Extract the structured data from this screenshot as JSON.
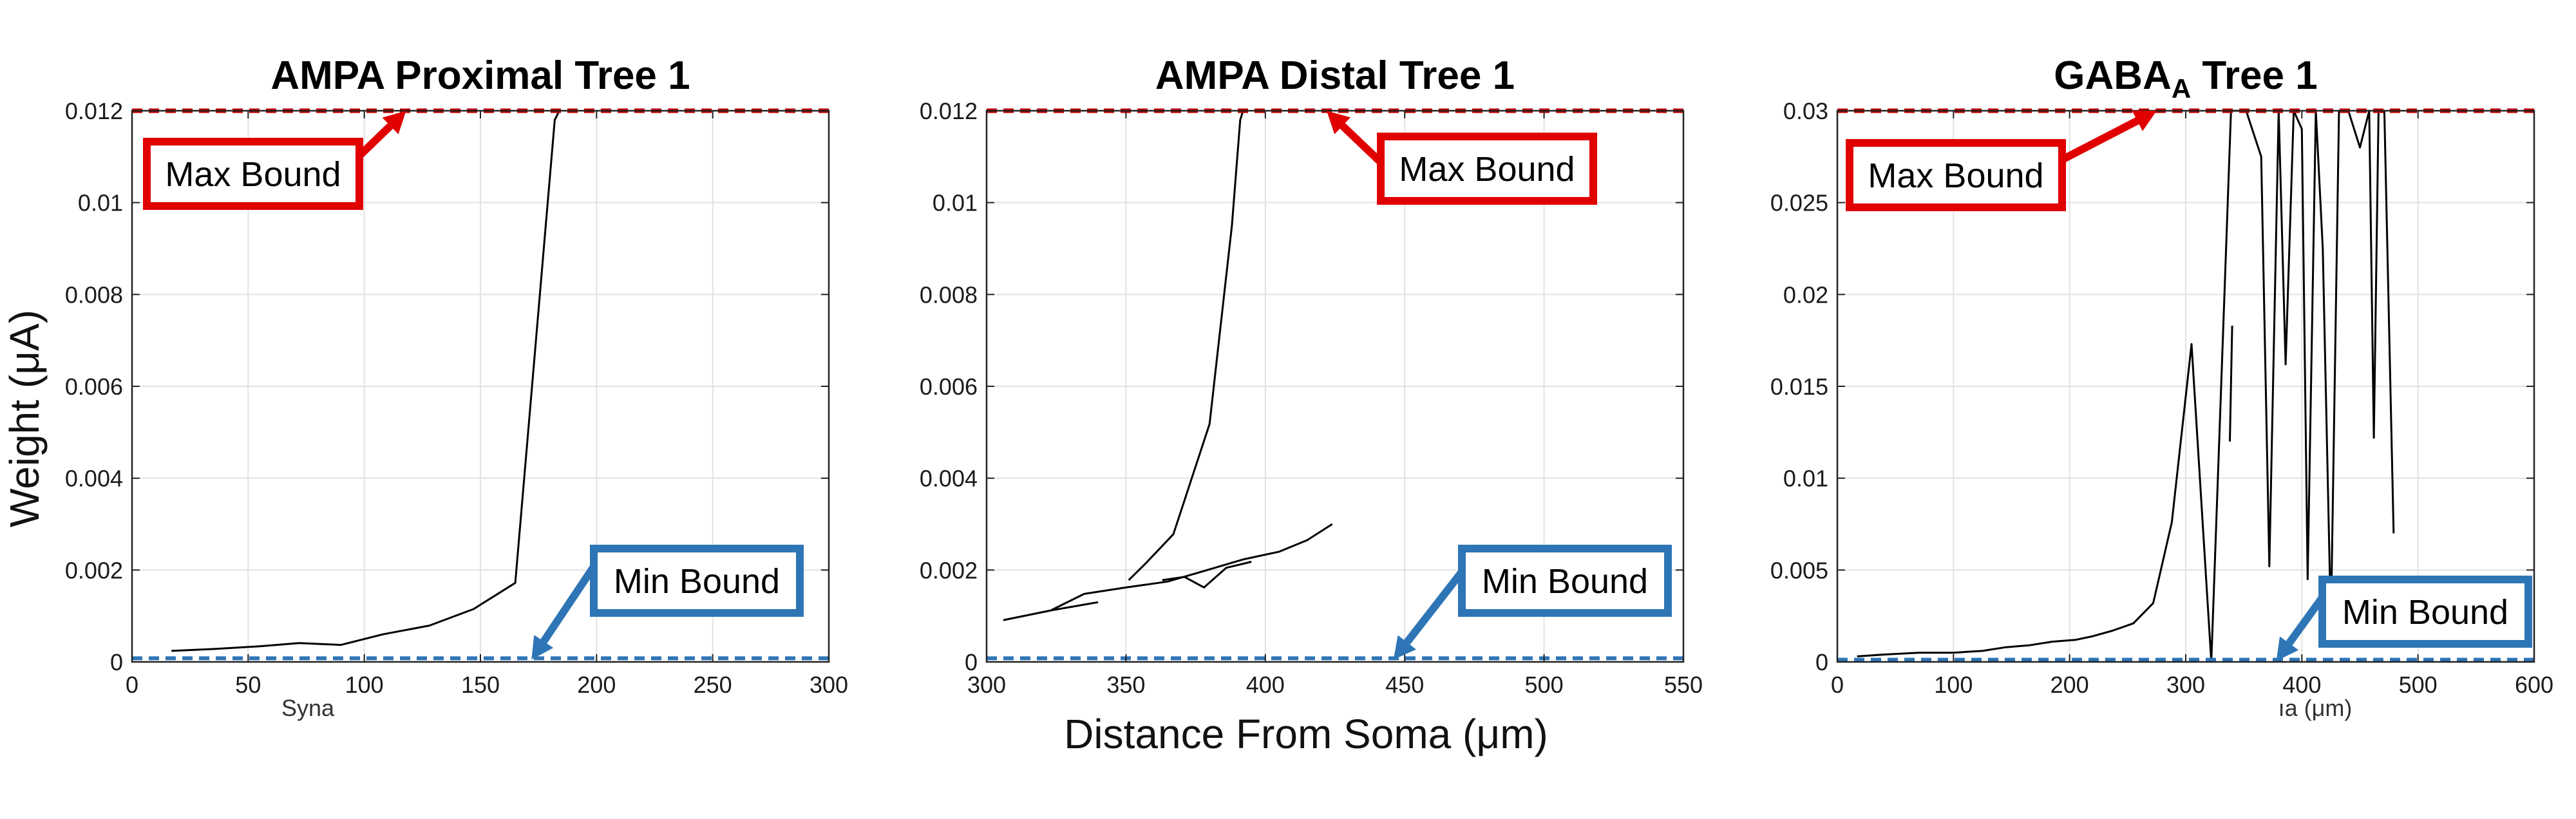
{
  "figure": {
    "ylabel": "Weight (μA)",
    "xlabel": "Distance From Soma (μm)"
  },
  "chart_data": [
    {
      "type": "line",
      "title": "AMPA Proximal Tree 1",
      "title_sub": "",
      "title_tail": "",
      "xlim": [
        0,
        300
      ],
      "ylim": [
        0,
        0.012
      ],
      "x_ticks": [
        0,
        50,
        100,
        150,
        200,
        250,
        300
      ],
      "y_ticks": [
        0,
        0.002,
        0.004,
        0.006,
        0.008,
        0.01,
        0.012
      ],
      "y_tick_labels": [
        "0",
        "0.002",
        "0.004",
        "0.006",
        "0.008",
        "0.01",
        "0.012"
      ],
      "grid": true,
      "x_label_fragment": "Syna",
      "bounds": {
        "max": 0.012,
        "min": 5e-05,
        "max_color": "#c00000",
        "min_color": "#2e75b6"
      },
      "series": [
        {
          "x": [
            17,
            35,
            55,
            72,
            90,
            108,
            128,
            147,
            165,
            182,
            184
          ],
          "y": [
            0.00024,
            0.00028,
            0.00034,
            0.00041,
            0.00037,
            0.0006,
            0.00079,
            0.00115,
            0.00172,
            0.0118,
            0.012
          ]
        }
      ],
      "annotations": [
        {
          "text": "Max Bound",
          "color": "#e00000",
          "arrow_to": [
            118,
            0.012
          ]
        },
        {
          "text": "Min Bound",
          "color": "#2e75b6",
          "arrow_to": [
            172,
            5e-05
          ]
        }
      ]
    },
    {
      "type": "line",
      "title": "AMPA Distal Tree 1",
      "title_sub": "",
      "title_tail": "",
      "xlim": [
        300,
        550
      ],
      "ylim": [
        0,
        0.012
      ],
      "x_ticks": [
        300,
        350,
        400,
        450,
        500,
        550
      ],
      "y_ticks": [
        0,
        0.002,
        0.004,
        0.006,
        0.008,
        0.01,
        0.012
      ],
      "y_tick_labels": [
        "0",
        "0.002",
        "0.004",
        "0.006",
        "0.008",
        "0.01",
        "0.012"
      ],
      "grid": true,
      "x_label_fragment": "",
      "bounds": {
        "max": 0.012,
        "min": 5e-05,
        "max_color": "#c00000",
        "min_color": "#2e75b6"
      },
      "series": [
        {
          "x": [
            306,
            323,
            340
          ],
          "y": [
            0.00091,
            0.00112,
            0.0013
          ]
        },
        {
          "x": [
            351,
            357,
            367,
            380,
            388,
            391,
            392
          ],
          "y": [
            0.00178,
            0.00214,
            0.00278,
            0.00518,
            0.0095,
            0.0118,
            0.012
          ]
        },
        {
          "x": [
            323,
            335,
            350,
            365,
            378,
            392,
            405,
            415,
            424
          ],
          "y": [
            0.00112,
            0.00148,
            0.00162,
            0.00175,
            0.00198,
            0.00223,
            0.0024,
            0.00265,
            0.003
          ]
        },
        {
          "x": [
            363,
            371,
            378,
            386,
            395
          ],
          "y": [
            0.00178,
            0.00185,
            0.00162,
            0.00205,
            0.00218
          ]
        }
      ],
      "annotations": [
        {
          "text": "Max Bound",
          "color": "#e00000",
          "arrow_to": [
            422,
            0.012
          ]
        },
        {
          "text": "Min Bound",
          "color": "#2e75b6",
          "arrow_to": [
            446,
            5e-05
          ]
        }
      ]
    },
    {
      "type": "line",
      "title": "GABA",
      "title_sub": "A",
      "title_tail": " Tree 1",
      "xlim": [
        0,
        600
      ],
      "ylim": [
        0,
        0.03
      ],
      "x_ticks": [
        0,
        100,
        200,
        300,
        400,
        500,
        600
      ],
      "y_ticks": [
        0,
        0.005,
        0.01,
        0.015,
        0.02,
        0.025,
        0.03
      ],
      "y_tick_labels": [
        "0",
        "0.005",
        "0.01",
        "0.015",
        "0.02",
        "0.025",
        "0.03"
      ],
      "grid": true,
      "x_label_fragment": "ıa (μm)",
      "bounds": {
        "max": 0.03,
        "min": 5e-05,
        "max_color": "#c00000",
        "min_color": "#2e75b6"
      },
      "series": [
        {
          "x": [
            17,
            40,
            70,
            100,
            125,
            145,
            165,
            185,
            205,
            220,
            237,
            255,
            272,
            288,
            305,
            322,
            339,
            352,
            365,
            372,
            380,
            386,
            393,
            400,
            405,
            412,
            418,
            425,
            432,
            440,
            450,
            458,
            462,
            466,
            471,
            479
          ],
          "y": [
            0.0003,
            0.0004,
            0.0005,
            0.0005,
            0.0006,
            0.0008,
            0.0009,
            0.0011,
            0.0012,
            0.0014,
            0.0017,
            0.0021,
            0.0032,
            0.0076,
            0.0173,
            0.0,
            0.03,
            0.03,
            0.0275,
            0.0052,
            0.03,
            0.0162,
            0.03,
            0.029,
            0.0045,
            0.03,
            0.0225,
            0.002,
            0.03,
            0.03,
            0.028,
            0.03,
            0.0122,
            0.03,
            0.03,
            0.007
          ]
        },
        {
          "x": [
            338,
            340
          ],
          "y": [
            0.012,
            0.0183
          ]
        }
      ],
      "annotations": [
        {
          "text": "Max Bound",
          "color": "#e00000",
          "arrow_to": [
            275,
            0.03
          ]
        },
        {
          "text": "Min Bound",
          "color": "#2e75b6",
          "arrow_to": [
            378,
            5e-05
          ]
        }
      ]
    }
  ]
}
